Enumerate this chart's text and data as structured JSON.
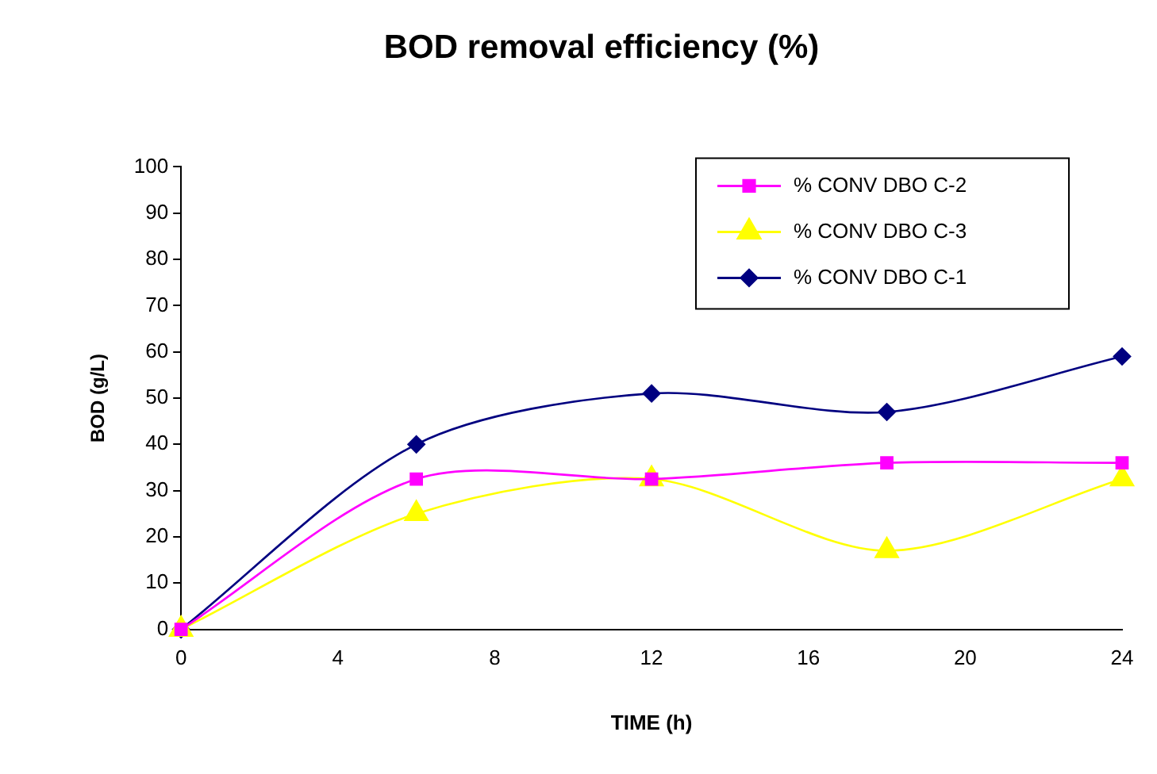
{
  "chart_data": {
    "type": "line",
    "title": "BOD removal efficiency (%)",
    "xlabel": "TIME (h)",
    "ylabel": "BOD (g/L)",
    "x": [
      0,
      6,
      12,
      18,
      24
    ],
    "series": [
      {
        "name": "% CONV DBO C-2",
        "color": "#ff00ff",
        "marker": "square",
        "values": [
          0,
          32.5,
          32.5,
          36,
          36
        ]
      },
      {
        "name": "% CONV DBO C-3",
        "color": "#ffff00",
        "marker": "triangle",
        "values": [
          0,
          25,
          32.5,
          17,
          32.5
        ]
      },
      {
        "name": "% CONV DBO C-1",
        "color": "#000080",
        "marker": "diamond",
        "values": [
          0,
          40,
          51,
          47,
          59
        ]
      }
    ],
    "xlim": [
      0,
      24
    ],
    "xticks": [
      0,
      4,
      8,
      12,
      16,
      20,
      24
    ],
    "ylim": [
      0,
      100
    ],
    "yticks": [
      0,
      10,
      20,
      30,
      40,
      50,
      60,
      70,
      80,
      90,
      100
    ],
    "grid": false,
    "legend": "top right",
    "line_style": "solid"
  }
}
